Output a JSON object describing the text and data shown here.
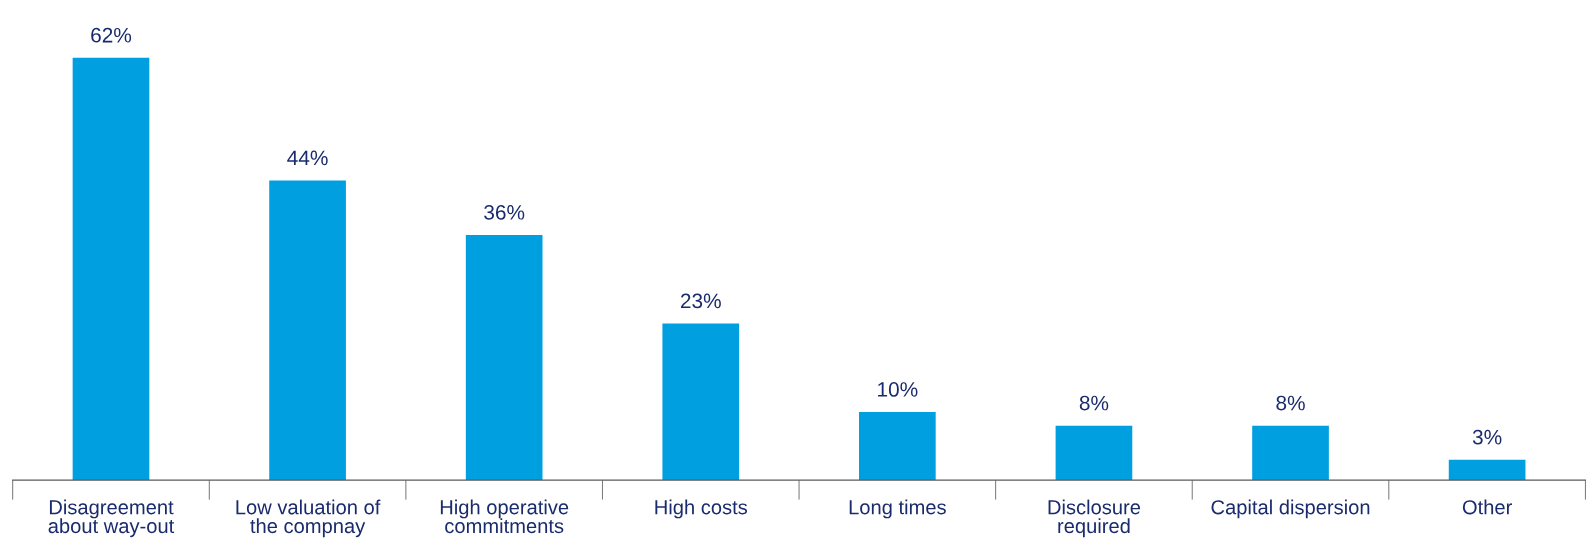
{
  "chart_data": {
    "type": "bar",
    "categories": [
      "Disagreement\nabout way-out",
      "Low valuation of\nthe compnay",
      "High operative\ncommitments",
      "High costs",
      "Long times",
      "Disclosure\nrequired",
      "Capital dispersion",
      "Other"
    ],
    "values": [
      62,
      44,
      36,
      23,
      10,
      8,
      8,
      3
    ],
    "value_labels": [
      "62%",
      "44%",
      "36%",
      "23%",
      "10%",
      "8%",
      "8%",
      "3%"
    ],
    "color": "#009fdf",
    "grid": false,
    "legend": false
  }
}
